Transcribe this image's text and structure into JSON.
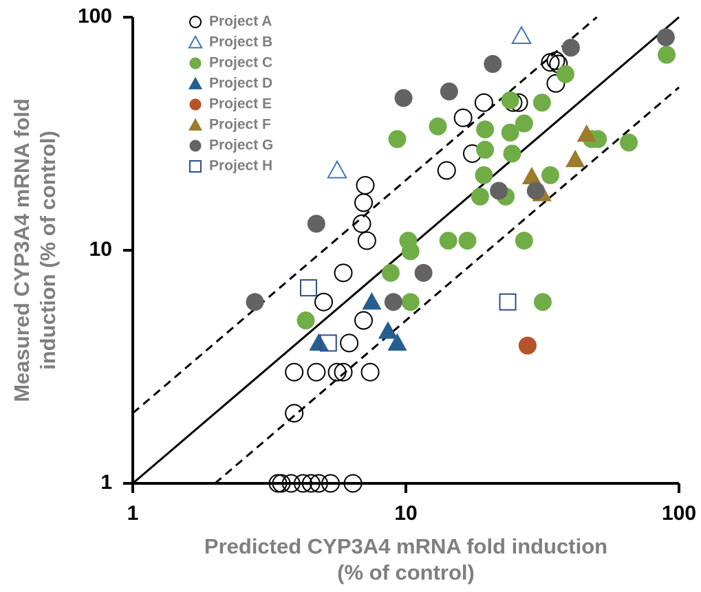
{
  "chart_data": {
    "type": "scatter",
    "xlabel": [
      "Predicted CYP3A4 mRNA fold induction",
      "(% of control)"
    ],
    "ylabel": [
      "Measured CYP3A4 mRNA fold",
      "induction (% of control)"
    ],
    "xscale": "log",
    "yscale": "log",
    "xlim": [
      1,
      100
    ],
    "ylim": [
      1,
      100
    ],
    "xticks": [
      1,
      10,
      100
    ],
    "yticks": [
      1,
      10,
      100
    ],
    "legend": "upper left",
    "reference_lines": [
      {
        "factor": 1,
        "dashed": false
      },
      {
        "factor": 2,
        "dashed": true
      },
      {
        "factor": 0.5,
        "dashed": true
      }
    ],
    "series": [
      {
        "name": "Project A",
        "color": "#000000",
        "marker": "circle",
        "filled": false,
        "x": [
          7.0,
          7.1,
          7.0,
          6.9,
          7.2,
          5.9,
          5.0,
          6.2,
          3.9,
          4.7,
          5.6,
          5.9,
          7.4,
          3.9,
          3.4,
          3.5,
          3.8,
          4.2,
          4.5,
          4.8,
          5.3,
          6.4,
          14.1,
          16.2,
          17.5,
          19.3,
          24.7,
          25.9,
          33.8,
          35.4,
          36.2,
          35.4
        ],
        "y": [
          5,
          19,
          16,
          13,
          11,
          8,
          6,
          4,
          3,
          3,
          3,
          3,
          3,
          2,
          1,
          1,
          1,
          1,
          1,
          1,
          1,
          1,
          22,
          37,
          26,
          43,
          43,
          43,
          64,
          65,
          63,
          52
        ]
      },
      {
        "name": "Project B",
        "color": "#4472c4",
        "marker": "triangle",
        "filled": false,
        "x": [
          26.5,
          5.6
        ],
        "y": [
          83,
          22
        ]
      },
      {
        "name": "Project C",
        "color": "#70ad47",
        "marker": "circle",
        "filled": true,
        "x": [
          90.1,
          38.4,
          24.1,
          31.5,
          13.1,
          19.5,
          24.1,
          27.1,
          9.3,
          19.5,
          24.5,
          47.9,
          50.5,
          65.5,
          19.3,
          33.8,
          18.7,
          23.2,
          10.2,
          10.4,
          14.3,
          16.8,
          27.1,
          8.8,
          10.4,
          31.7,
          4.3
        ],
        "y": [
          69,
          57,
          44,
          43,
          34,
          33,
          32,
          35,
          30,
          27,
          26,
          30,
          30,
          29,
          21,
          21,
          17,
          17,
          11,
          9.9,
          11,
          11,
          11,
          8,
          6,
          6,
          5
        ]
      },
      {
        "name": "Project D",
        "color": "#255e91",
        "marker": "triangle",
        "filled": true,
        "x": [
          7.5,
          8.6,
          9.3,
          4.8
        ],
        "y": [
          6,
          4.5,
          4,
          4
        ]
      },
      {
        "name": "Project E",
        "color": "#b5532a",
        "marker": "circle",
        "filled": true,
        "x": [
          27.9
        ],
        "y": [
          3.9
        ]
      },
      {
        "name": "Project F",
        "color": "#9c7a2e",
        "marker": "triangle",
        "filled": true,
        "x": [
          45.9,
          41.7,
          28.9,
          31.5
        ],
        "y": [
          31.5,
          24.5,
          20.7,
          17.5
        ]
      },
      {
        "name": "Project G",
        "color": "#636363",
        "marker": "circle",
        "filled": true,
        "x": [
          89.5,
          40.2,
          20.8,
          14.4,
          9.8,
          21.9,
          29.9,
          4.7,
          11.6,
          9.0,
          2.8
        ],
        "y": [
          82,
          74,
          63,
          48,
          45,
          18,
          18,
          13,
          8,
          6,
          6
        ]
      },
      {
        "name": "Project H",
        "color": "#2f4c8a",
        "marker": "square",
        "filled": false,
        "x": [
          4.4,
          5.2,
          23.6
        ],
        "y": [
          6.9,
          4,
          6
        ]
      }
    ]
  }
}
